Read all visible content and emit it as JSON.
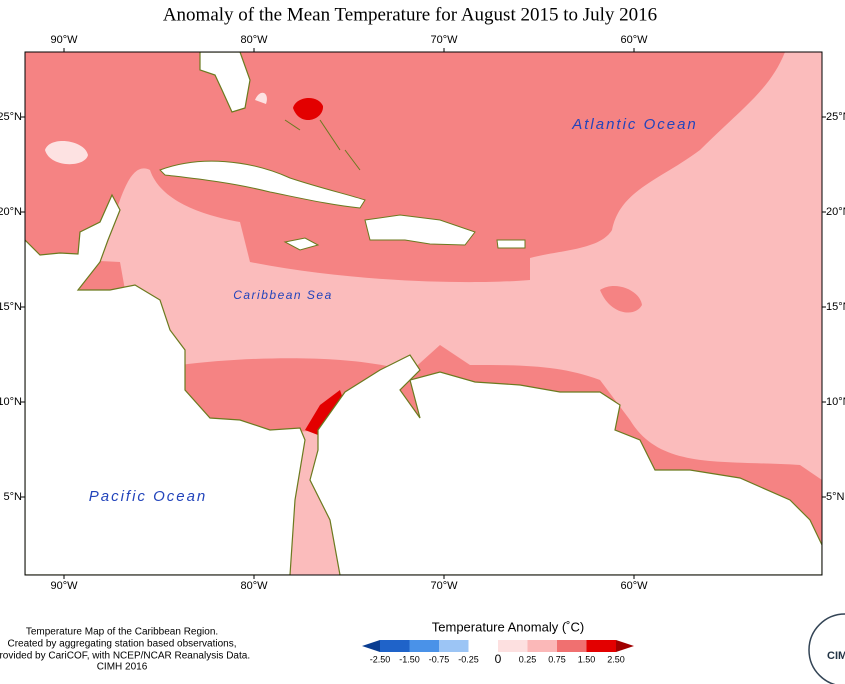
{
  "title": "Anomaly of the Mean Temperature for August 2015 to July 2016",
  "longitude_labels": [
    "90°W",
    "80°W",
    "70°W",
    "60°W"
  ],
  "latitude_labels": [
    "25°N",
    "20°N",
    "15°N",
    "10°N",
    "5°N"
  ],
  "places": [
    "Atlantic Ocean",
    "Caribbean Sea",
    "Pacific Ocean"
  ],
  "footer": [
    "Temperature Map of the Caribbean Region.",
    "Created by aggregating station based observations,",
    "provided by CariCOF, with NCEP/NCAR Reanalysis Data.",
    "CIMH 2016"
  ],
  "legend": {
    "title": "Temperature Anomaly (˚C)",
    "labels": [
      "-2.50",
      "-1.50",
      "-0.75",
      "-0.25",
      "0",
      "0.25",
      "0.75",
      "1.50",
      "2.50"
    ]
  },
  "logo": "CIMH"
}
